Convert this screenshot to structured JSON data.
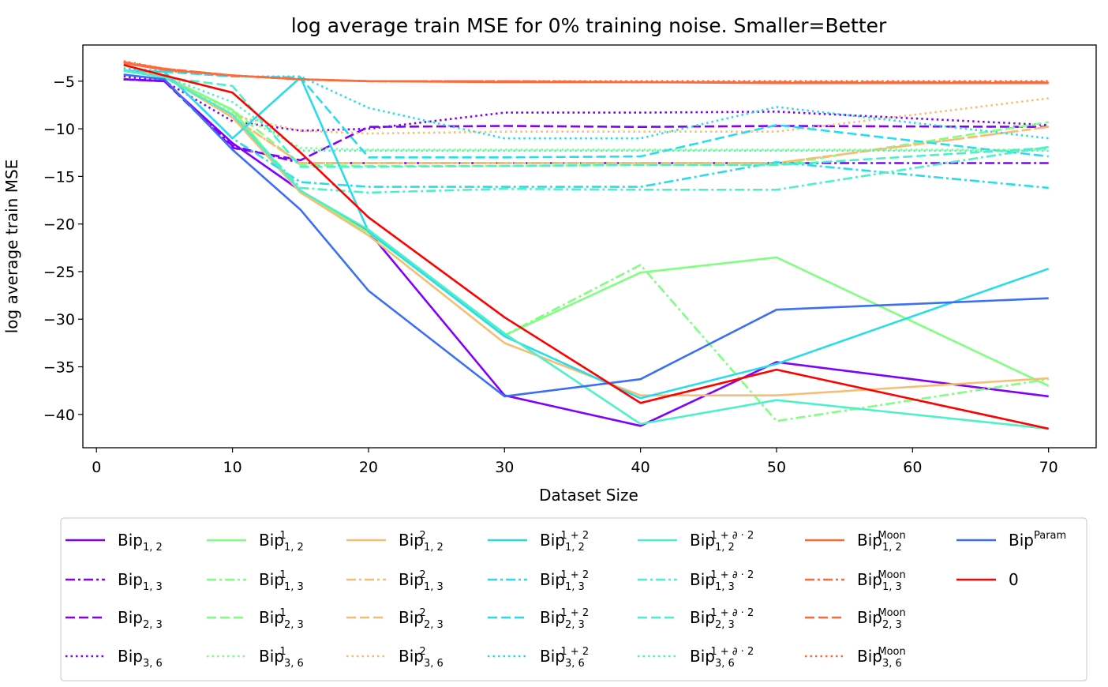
{
  "chart_data": {
    "type": "line",
    "title": "log average train MSE for 0% training noise. Smaller=Better",
    "xlabel": "Dataset Size",
    "ylabel": "log average train MSE",
    "xlim": [
      -1,
      73.5
    ],
    "ylim": [
      -43.5,
      -1.2
    ],
    "xticks": [
      0,
      10,
      20,
      30,
      40,
      50,
      60,
      70
    ],
    "yticks": [
      -5,
      -10,
      -15,
      -20,
      -25,
      -30,
      -35,
      -40
    ],
    "grid": false,
    "legend_position": "bottom",
    "legend_columns": 7,
    "x": [
      2,
      5,
      10,
      15,
      20,
      30,
      40,
      50,
      70
    ],
    "series": [
      {
        "base": "Bip",
        "sub": "1, 2",
        "sup": "",
        "color": "#8000ff",
        "dash": "solid",
        "values": [
          -4.8,
          -5.0,
          -11.5,
          -16.5,
          -20.8,
          -38.0,
          -41.2,
          -34.5,
          -38.1
        ]
      },
      {
        "base": "Bip",
        "sub": "1, 3",
        "sup": "",
        "color": "#8000ff",
        "dash": "dashdot",
        "values": [
          -4.8,
          -5.0,
          -11.8,
          -13.6,
          -13.6,
          -13.6,
          -13.6,
          -13.6,
          -13.6
        ]
      },
      {
        "base": "Bip",
        "sub": "2, 3",
        "sup": "",
        "color": "#8000ff",
        "dash": "dashed",
        "values": [
          -4.8,
          -5.0,
          -12.0,
          -13.3,
          -9.8,
          -9.7,
          -9.8,
          -9.7,
          -9.8
        ]
      },
      {
        "base": "Bip",
        "sub": "3, 6",
        "sup": "",
        "color": "#8000ff",
        "dash": "dotted",
        "values": [
          -4.5,
          -5.0,
          -9.2,
          -10.2,
          -10.0,
          -8.3,
          -8.3,
          -8.2,
          -9.6
        ]
      },
      {
        "base": "Bip",
        "sub": "1, 2",
        "sup": "1",
        "color": "#80ff80",
        "dash": "solid",
        "values": [
          -3.9,
          -4.5,
          -8.0,
          -16.7,
          -20.9,
          -31.7,
          -25.1,
          -23.5,
          -37.0
        ]
      },
      {
        "base": "Bip",
        "sub": "1, 3",
        "sup": "1",
        "color": "#80ff80",
        "dash": "dashdot",
        "values": [
          -3.9,
          -4.5,
          -8.0,
          -16.7,
          -20.9,
          -31.7,
          -24.3,
          -40.7,
          -36.3
        ]
      },
      {
        "base": "Bip",
        "sub": "2, 3",
        "sup": "1",
        "color": "#80ff80",
        "dash": "dashed",
        "values": [
          -3.9,
          -4.5,
          -8.0,
          -13.8,
          -13.9,
          -13.9,
          -13.8,
          -13.8,
          -9.3
        ]
      },
      {
        "base": "Bip",
        "sub": "3, 6",
        "sup": "1",
        "color": "#80ff80",
        "dash": "dotted",
        "values": [
          -3.7,
          -4.4,
          -8.2,
          -12.0,
          -12.2,
          -12.2,
          -12.2,
          -12.2,
          -12.2
        ]
      },
      {
        "base": "Bip",
        "sub": "1, 2",
        "sup": "2",
        "color": "#f6be74",
        "dash": "solid",
        "values": [
          -3.9,
          -4.5,
          -8.8,
          -16.7,
          -21.2,
          -32.5,
          -38.0,
          -38.0,
          -36.2
        ]
      },
      {
        "base": "Bip",
        "sub": "1, 3",
        "sup": "2",
        "color": "#f6be74",
        "dash": "dashdot",
        "values": [
          -3.9,
          -4.5,
          -8.8,
          -13.6,
          -13.6,
          -13.6,
          -13.6,
          -13.6,
          -9.8
        ]
      },
      {
        "base": "Bip",
        "sub": "2, 3",
        "sup": "2",
        "color": "#f6be74",
        "dash": "dashed",
        "values": [
          -3.9,
          -4.5,
          -8.8,
          -13.6,
          -13.6,
          -13.6,
          -13.6,
          -13.6,
          -9.8
        ]
      },
      {
        "base": "Bip",
        "sub": "3, 6",
        "sup": "2",
        "color": "#f6be74",
        "dash": "dotted",
        "values": [
          -3.6,
          -4.3,
          -8.6,
          -10.2,
          -10.5,
          -10.3,
          -10.3,
          -10.3,
          -6.8
        ]
      },
      {
        "base": "Bip",
        "sub": "1, 2",
        "sup": "1 + 2",
        "color": "#2adcea",
        "dash": "solid",
        "values": [
          -3.9,
          -4.0,
          -11.0,
          -4.6,
          -20.8,
          -31.8,
          -38.3,
          -34.7,
          -24.7
        ]
      },
      {
        "base": "Bip",
        "sub": "1, 3",
        "sup": "1 + 2",
        "color": "#2adcea",
        "dash": "dashdot",
        "values": [
          -3.9,
          -4.0,
          -11.0,
          -15.6,
          -16.1,
          -16.1,
          -16.1,
          -13.5,
          -16.2
        ]
      },
      {
        "base": "Bip",
        "sub": "2, 3",
        "sup": "1 + 2",
        "color": "#2adcea",
        "dash": "dashed",
        "values": [
          -3.9,
          -4.0,
          -4.5,
          -4.6,
          -13.0,
          -13.0,
          -12.9,
          -9.6,
          -12.9
        ]
      },
      {
        "base": "Bip",
        "sub": "3, 6",
        "sup": "1 + 2",
        "color": "#2adcea",
        "dash": "dotted",
        "values": [
          -3.7,
          -3.9,
          -4.5,
          -4.5,
          -7.8,
          -11.0,
          -11.0,
          -7.7,
          -11.0
        ]
      },
      {
        "base": "Bip",
        "sub": "1, 2",
        "sup": "1 + ∂ · 2",
        "color": "#4df0c8",
        "dash": "solid",
        "values": [
          -3.9,
          -4.6,
          -8.5,
          -16.5,
          -20.6,
          -31.5,
          -41.0,
          -38.5,
          -41.5
        ]
      },
      {
        "base": "Bip",
        "sub": "1, 3",
        "sup": "1 + ∂ · 2",
        "color": "#4df0c8",
        "dash": "dashdot",
        "values": [
          -3.9,
          -4.6,
          -8.5,
          -16.2,
          -16.7,
          -16.3,
          -16.4,
          -16.4,
          -11.9
        ]
      },
      {
        "base": "Bip",
        "sub": "2, 3",
        "sup": "1 + ∂ · 2",
        "color": "#4df0c8",
        "dash": "dashed",
        "values": [
          -3.9,
          -4.6,
          -5.5,
          -14.0,
          -14.0,
          -13.9,
          -13.8,
          -13.8,
          -12.0
        ]
      },
      {
        "base": "Bip",
        "sub": "3, 6",
        "sup": "1 + ∂ · 2",
        "color": "#4df0c8",
        "dash": "dotted",
        "values": [
          -3.8,
          -4.5,
          -7.2,
          -12.3,
          -12.3,
          -12.3,
          -12.3,
          -12.3,
          -12.3
        ]
      },
      {
        "base": "Bip",
        "sub": "1, 2",
        "sup": "Moon",
        "color": "#ff6a3a",
        "dash": "solid",
        "values": [
          -3.1,
          -3.8,
          -4.4,
          -4.8,
          -5.0,
          -5.1,
          -5.1,
          -5.2,
          -5.2
        ]
      },
      {
        "base": "Bip",
        "sub": "1, 3",
        "sup": "Moon",
        "color": "#ff6a3a",
        "dash": "dashdot",
        "values": [
          -3.0,
          -3.7,
          -4.4,
          -4.8,
          -5.0,
          -5.0,
          -5.1,
          -5.1,
          -5.1
        ]
      },
      {
        "base": "Bip",
        "sub": "2, 3",
        "sup": "Moon",
        "color": "#ff6a3a",
        "dash": "dashed",
        "values": [
          -3.0,
          -3.7,
          -4.4,
          -4.8,
          -5.0,
          -5.0,
          -5.1,
          -5.1,
          -5.1
        ]
      },
      {
        "base": "Bip",
        "sub": "3, 6",
        "sup": "Moon",
        "color": "#ff6a3a",
        "dash": "dotted",
        "values": [
          -2.9,
          -3.7,
          -4.4,
          -4.8,
          -5.0,
          -5.0,
          -5.0,
          -5.0,
          -5.0
        ]
      },
      {
        "base": "Bip",
        "sub": "",
        "sup": "Param",
        "color": "#3c6ff5",
        "dash": "solid",
        "values": [
          -4.3,
          -4.8,
          -12.2,
          -18.5,
          -27.0,
          -38.1,
          -36.3,
          -29.0,
          -27.8
        ]
      },
      {
        "base": "0",
        "sub": "",
        "sup": "",
        "color": "#ff0000",
        "dash": "solid",
        "values": [
          -3.3,
          -4.4,
          -6.2,
          -12.5,
          -19.3,
          -29.8,
          -38.8,
          -35.3,
          -41.5
        ]
      }
    ]
  }
}
